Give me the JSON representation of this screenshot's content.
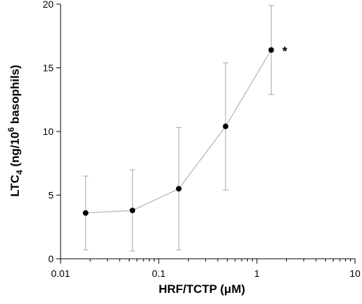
{
  "chart_data": {
    "type": "line",
    "xscale": "log",
    "xlim": [
      0.01,
      10
    ],
    "ylim": [
      0,
      20
    ],
    "xticks": [
      0.01,
      0.1,
      1,
      10
    ],
    "xtick_labels": [
      "0.01",
      "0.1",
      "1",
      "10"
    ],
    "yticks": [
      0,
      5,
      10,
      15,
      20
    ],
    "ytick_labels": [
      "0",
      "5",
      "10",
      "15",
      "20"
    ],
    "xlabel": "HRF/TCTP (μM)",
    "ylabel": {
      "prefix": "LTC",
      "sub": "4",
      "mid": " (ng/10",
      "sup": "6",
      "suffix": " basophils)"
    },
    "grid": false,
    "series": [
      {
        "x": [
          0.018,
          0.054,
          0.16,
          0.48,
          1.4
        ],
        "y": [
          3.6,
          3.8,
          5.5,
          10.4,
          16.4
        ],
        "err_low": [
          0.7,
          0.6,
          0.7,
          5.4,
          12.9
        ],
        "err_high": [
          6.5,
          7.0,
          10.3,
          15.4,
          19.9
        ]
      }
    ],
    "annotations": [
      {
        "text": "*",
        "x": 1.4,
        "y": 16.4
      }
    ],
    "colors": {
      "line": "#a6a6a6",
      "errorbar": "#a6a6a6",
      "marker": "#000000",
      "axis": "#000000"
    }
  }
}
